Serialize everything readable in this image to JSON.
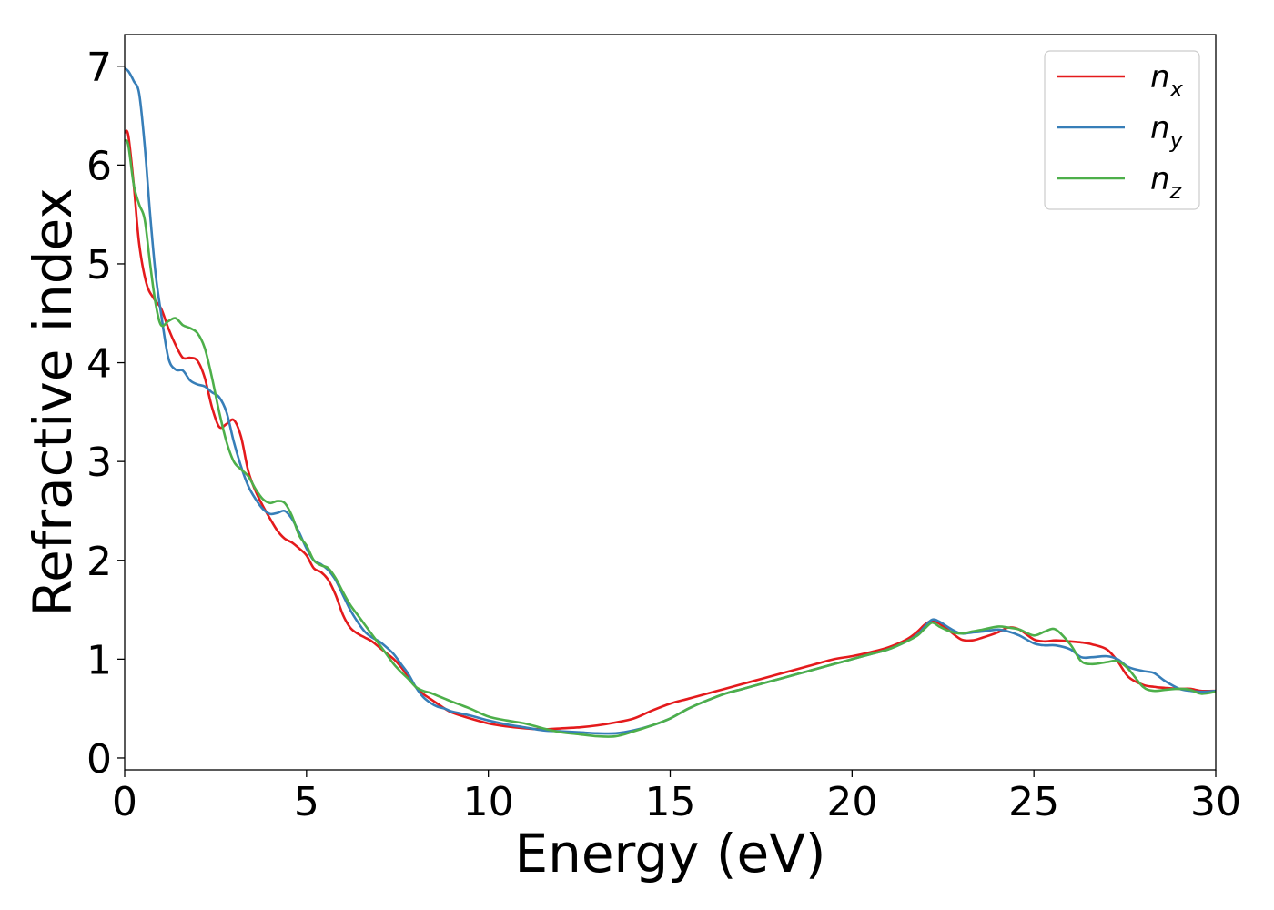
{
  "chart_data": {
    "type": "line",
    "title": "",
    "xlabel": "Energy (eV)",
    "ylabel": "Refractive index",
    "xlim": [
      0,
      30
    ],
    "ylim": [
      -0.12,
      7.32
    ],
    "xticks": [
      0,
      5,
      10,
      15,
      20,
      25,
      30
    ],
    "yticks": [
      0,
      1,
      2,
      3,
      4,
      5,
      6,
      7
    ],
    "grid": false,
    "legend_position": "top-right",
    "series": [
      {
        "name": "n",
        "subscript": "x",
        "color": "#e41a1c",
        "x": [
          0,
          0.1,
          0.25,
          0.4,
          0.6,
          0.8,
          1.0,
          1.2,
          1.4,
          1.6,
          1.8,
          2.0,
          2.2,
          2.4,
          2.6,
          2.8,
          3.0,
          3.2,
          3.4,
          3.6,
          3.8,
          4.0,
          4.2,
          4.4,
          4.6,
          4.8,
          5.0,
          5.2,
          5.4,
          5.6,
          5.8,
          6.0,
          6.2,
          6.4,
          6.6,
          6.8,
          7.0,
          7.2,
          7.4,
          7.6,
          7.8,
          8.0,
          8.2,
          8.4,
          8.6,
          8.8,
          9.0,
          9.5,
          10.0,
          10.5,
          11.0,
          11.5,
          12.0,
          12.5,
          13.0,
          13.5,
          14.0,
          14.5,
          15.0,
          15.5,
          16.0,
          16.5,
          17.0,
          17.5,
          18.0,
          18.5,
          19.0,
          19.5,
          20.0,
          20.5,
          21.0,
          21.5,
          21.8,
          22.0,
          22.2,
          22.4,
          22.7,
          23.0,
          23.3,
          23.6,
          24.0,
          24.3,
          24.6,
          25.0,
          25.3,
          25.6,
          26.0,
          26.3,
          26.6,
          27.0,
          27.3,
          27.6,
          28.0,
          28.3,
          28.6,
          29.0,
          29.3,
          29.6,
          30.0
        ],
        "y": [
          6.33,
          6.3,
          5.8,
          5.2,
          4.8,
          4.65,
          4.55,
          4.35,
          4.18,
          4.05,
          4.05,
          4.02,
          3.85,
          3.55,
          3.35,
          3.38,
          3.42,
          3.25,
          2.9,
          2.7,
          2.55,
          2.42,
          2.3,
          2.22,
          2.18,
          2.12,
          2.05,
          1.92,
          1.88,
          1.8,
          1.65,
          1.45,
          1.32,
          1.26,
          1.22,
          1.18,
          1.12,
          1.06,
          1.0,
          0.92,
          0.82,
          0.72,
          0.65,
          0.6,
          0.55,
          0.5,
          0.46,
          0.4,
          0.35,
          0.32,
          0.3,
          0.29,
          0.3,
          0.31,
          0.33,
          0.36,
          0.4,
          0.48,
          0.55,
          0.6,
          0.65,
          0.7,
          0.75,
          0.8,
          0.85,
          0.9,
          0.95,
          1.0,
          1.03,
          1.07,
          1.12,
          1.2,
          1.28,
          1.35,
          1.39,
          1.36,
          1.28,
          1.2,
          1.19,
          1.22,
          1.27,
          1.32,
          1.3,
          1.2,
          1.18,
          1.19,
          1.18,
          1.17,
          1.15,
          1.1,
          0.98,
          0.82,
          0.74,
          0.72,
          0.71,
          0.7,
          0.7,
          0.68,
          0.68
        ]
      },
      {
        "name": "n",
        "subscript": "y",
        "color": "#377eb8",
        "x": [
          0,
          0.1,
          0.25,
          0.4,
          0.55,
          0.7,
          0.85,
          1.0,
          1.2,
          1.4,
          1.6,
          1.8,
          2.0,
          2.2,
          2.4,
          2.6,
          2.8,
          3.0,
          3.2,
          3.4,
          3.6,
          3.8,
          4.0,
          4.2,
          4.4,
          4.6,
          4.8,
          5.0,
          5.2,
          5.4,
          5.6,
          5.8,
          6.0,
          6.2,
          6.4,
          6.6,
          6.8,
          7.0,
          7.2,
          7.4,
          7.6,
          7.8,
          8.0,
          8.2,
          8.4,
          8.6,
          8.8,
          9.0,
          9.5,
          10.0,
          10.5,
          11.0,
          11.5,
          12.0,
          12.5,
          13.0,
          13.5,
          14.0,
          14.5,
          15.0,
          15.5,
          16.0,
          16.5,
          17.0,
          17.5,
          18.0,
          18.5,
          19.0,
          19.5,
          20.0,
          20.5,
          21.0,
          21.5,
          21.8,
          22.0,
          22.2,
          22.4,
          22.7,
          23.0,
          23.3,
          23.6,
          24.0,
          24.3,
          24.6,
          25.0,
          25.3,
          25.6,
          26.0,
          26.3,
          26.6,
          27.0,
          27.3,
          27.6,
          28.0,
          28.3,
          28.6,
          29.0,
          29.3,
          29.6,
          30.0
        ],
        "y": [
          6.98,
          6.95,
          6.85,
          6.72,
          6.2,
          5.5,
          4.9,
          4.5,
          4.05,
          3.93,
          3.92,
          3.82,
          3.78,
          3.76,
          3.7,
          3.65,
          3.5,
          3.2,
          2.95,
          2.75,
          2.62,
          2.52,
          2.47,
          2.48,
          2.5,
          2.42,
          2.28,
          2.12,
          2.0,
          1.96,
          1.9,
          1.8,
          1.65,
          1.5,
          1.38,
          1.28,
          1.22,
          1.18,
          1.12,
          1.05,
          0.95,
          0.85,
          0.72,
          0.62,
          0.56,
          0.52,
          0.5,
          0.47,
          0.43,
          0.38,
          0.34,
          0.31,
          0.28,
          0.27,
          0.26,
          0.25,
          0.25,
          0.28,
          0.33,
          0.4,
          0.5,
          0.58,
          0.65,
          0.7,
          0.75,
          0.8,
          0.85,
          0.9,
          0.95,
          1.0,
          1.05,
          1.1,
          1.18,
          1.25,
          1.33,
          1.4,
          1.38,
          1.31,
          1.26,
          1.27,
          1.28,
          1.3,
          1.28,
          1.24,
          1.16,
          1.14,
          1.14,
          1.1,
          1.02,
          1.02,
          1.03,
          1.0,
          0.92,
          0.88,
          0.86,
          0.78,
          0.7,
          0.68,
          0.67,
          0.68
        ]
      },
      {
        "name": "n",
        "subscript": "z",
        "color": "#4daf4a",
        "x": [
          0,
          0.1,
          0.25,
          0.4,
          0.55,
          0.7,
          0.85,
          1.0,
          1.2,
          1.4,
          1.6,
          1.8,
          2.0,
          2.2,
          2.4,
          2.6,
          2.8,
          3.0,
          3.2,
          3.4,
          3.6,
          3.8,
          4.0,
          4.2,
          4.4,
          4.6,
          4.8,
          5.0,
          5.2,
          5.4,
          5.6,
          5.8,
          6.0,
          6.2,
          6.4,
          6.6,
          6.8,
          7.0,
          7.2,
          7.4,
          7.6,
          7.8,
          8.0,
          8.2,
          8.4,
          8.6,
          8.8,
          9.0,
          9.5,
          10.0,
          10.5,
          11.0,
          11.5,
          12.0,
          12.5,
          13.0,
          13.5,
          14.0,
          14.5,
          15.0,
          15.5,
          16.0,
          16.5,
          17.0,
          17.5,
          18.0,
          18.5,
          19.0,
          19.5,
          20.0,
          20.5,
          21.0,
          21.5,
          21.8,
          22.0,
          22.2,
          22.4,
          22.7,
          23.0,
          23.3,
          23.6,
          24.0,
          24.3,
          24.6,
          25.0,
          25.3,
          25.6,
          26.0,
          26.3,
          26.6,
          27.0,
          27.3,
          27.6,
          28.0,
          28.3,
          28.6,
          29.0,
          29.3,
          29.6,
          30.0
        ],
        "y": [
          6.25,
          6.2,
          5.8,
          5.6,
          5.45,
          5.0,
          4.6,
          4.38,
          4.42,
          4.45,
          4.38,
          4.35,
          4.3,
          4.15,
          3.85,
          3.5,
          3.2,
          3.0,
          2.92,
          2.85,
          2.72,
          2.62,
          2.58,
          2.6,
          2.58,
          2.45,
          2.25,
          2.15,
          2.0,
          1.95,
          1.92,
          1.82,
          1.68,
          1.55,
          1.45,
          1.35,
          1.25,
          1.15,
          1.05,
          0.95,
          0.87,
          0.8,
          0.72,
          0.68,
          0.66,
          0.63,
          0.6,
          0.57,
          0.5,
          0.42,
          0.38,
          0.35,
          0.3,
          0.26,
          0.24,
          0.22,
          0.22,
          0.27,
          0.33,
          0.4,
          0.5,
          0.58,
          0.65,
          0.7,
          0.75,
          0.8,
          0.85,
          0.9,
          0.95,
          1.0,
          1.05,
          1.1,
          1.18,
          1.24,
          1.31,
          1.37,
          1.33,
          1.28,
          1.26,
          1.28,
          1.3,
          1.33,
          1.32,
          1.3,
          1.24,
          1.28,
          1.3,
          1.15,
          0.98,
          0.95,
          0.97,
          0.98,
          0.9,
          0.72,
          0.68,
          0.69,
          0.7,
          0.69,
          0.65,
          0.67
        ]
      }
    ]
  }
}
